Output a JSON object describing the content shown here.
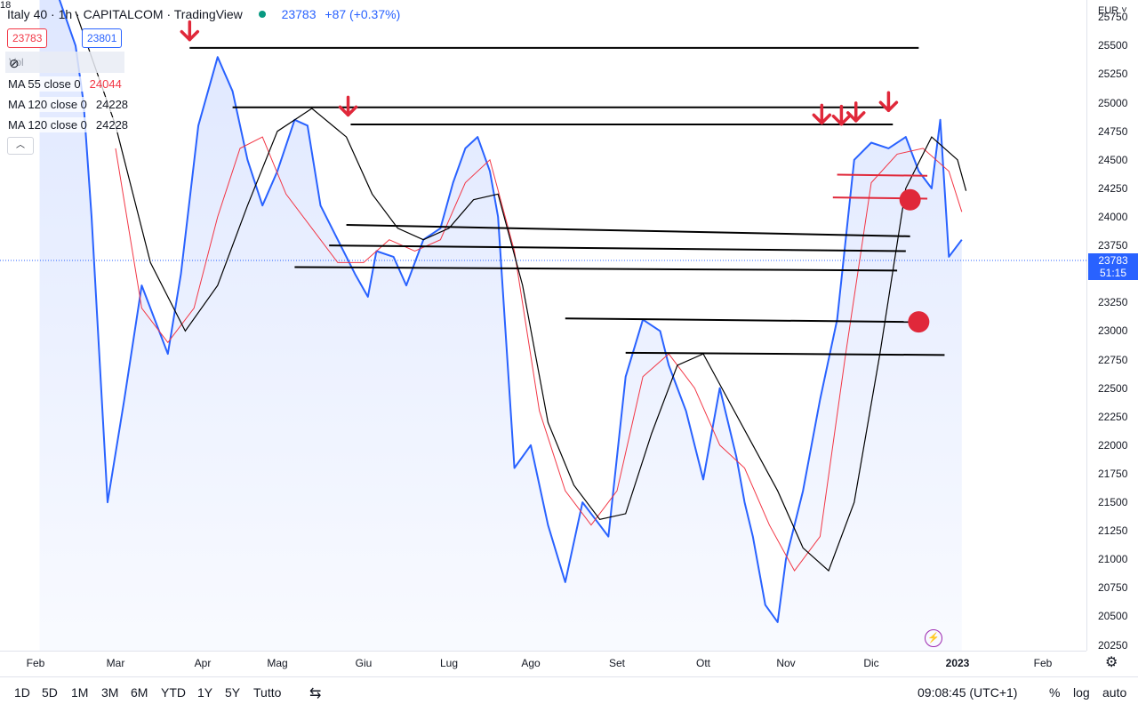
{
  "header": {
    "title": "Italy 40 · 1h · CAPITALCOM · TradingView",
    "last_value": "23783",
    "change": "+87 (+0.37%)"
  },
  "quote": {
    "bid": "23783",
    "spread": "18",
    "ask": "23801"
  },
  "volume": {
    "label": "Vol",
    "icon": "eye-slash-icon"
  },
  "indicators": [
    {
      "label": "MA 55 close 0",
      "value": "24044",
      "color": "#f23645"
    },
    {
      "label": "MA 120 close 0",
      "value": "24228",
      "color": "#131722"
    },
    {
      "label": "MA 120 close 0",
      "value": "24228",
      "color": "#131722"
    }
  ],
  "price_axis": {
    "currency": "EUR",
    "current_price": "23783",
    "countdown": "51:15",
    "ticks": [
      "20250",
      "20500",
      "20750",
      "21000",
      "21250",
      "21500",
      "21750",
      "22000",
      "22250",
      "22500",
      "22750",
      "23000",
      "23250",
      "23500",
      "23750",
      "24000",
      "24250",
      "24500",
      "24750",
      "25000",
      "25250",
      "25500",
      "25750"
    ]
  },
  "time_axis": {
    "ticks": [
      {
        "label": "Feb",
        "bold": false
      },
      {
        "label": "Mar",
        "bold": false
      },
      {
        "label": "Apr",
        "bold": false
      },
      {
        "label": "Mag",
        "bold": false
      },
      {
        "label": "Giu",
        "bold": false
      },
      {
        "label": "Lug",
        "bold": false
      },
      {
        "label": "Ago",
        "bold": false
      },
      {
        "label": "Set",
        "bold": false
      },
      {
        "label": "Ott",
        "bold": false
      },
      {
        "label": "Nov",
        "bold": false
      },
      {
        "label": "Dic",
        "bold": false
      },
      {
        "label": "2023",
        "bold": true
      },
      {
        "label": "Feb",
        "bold": false
      }
    ]
  },
  "bottom_bar": {
    "ranges": [
      "1D",
      "5D",
      "1M",
      "3M",
      "6M",
      "YTD",
      "1Y",
      "5Y",
      "Tutto"
    ],
    "time": "09:08:45 (UTC+1)",
    "percent": "%",
    "log": "log",
    "auto": "auto"
  },
  "colors": {
    "price": "#2962ff",
    "ma55": "#f23645",
    "ma120": "#000000",
    "annotation": "#e0283a"
  },
  "chart_data": {
    "type": "line",
    "x_unit": "month (2022, 1 = 1 Jan)",
    "y_range": [
      20200,
      25900
    ],
    "series": [
      {
        "name": "Italy 40",
        "x": [
          1.05,
          1.3,
          1.5,
          1.6,
          1.7,
          1.9,
          2.1,
          2.3,
          2.6,
          2.75,
          2.95,
          3.2,
          3.4,
          3.6,
          3.8,
          4.0,
          4.2,
          4.35,
          4.5,
          4.7,
          4.9,
          5.05,
          5.15,
          5.35,
          5.5,
          5.7,
          5.9,
          6.05,
          6.2,
          6.35,
          6.5,
          6.6,
          6.8,
          7.0,
          7.2,
          7.4,
          7.6,
          7.8,
          7.9,
          8.1,
          8.3,
          8.5,
          8.6,
          8.8,
          9.0,
          9.2,
          9.4,
          9.5,
          9.6,
          9.75,
          9.9,
          10.0,
          10.2,
          10.4,
          10.6,
          10.8,
          11.0,
          11.2,
          11.4,
          11.55,
          11.7,
          11.8,
          11.9,
          12.05,
          12.2,
          12.35,
          12.5
        ],
        "values": [
          26200,
          25900,
          25500,
          25000,
          24000,
          21500,
          22400,
          23400,
          22800,
          23500,
          24800,
          25400,
          25100,
          24500,
          24100,
          24400,
          24850,
          24800,
          24100,
          23800,
          23500,
          23300,
          23700,
          23650,
          23400,
          23800,
          23900,
          24300,
          24600,
          24700,
          24400,
          24000,
          21800,
          22000,
          21300,
          20800,
          21500,
          21300,
          21200,
          22600,
          23100,
          23000,
          22700,
          22300,
          21700,
          22500,
          21900,
          21500,
          21200,
          20600,
          20450,
          21000,
          21600,
          22400,
          23100,
          24500,
          24650,
          24600,
          24700,
          24400,
          24250,
          24850,
          23650,
          23800,
          null,
          null,
          null
        ]
      },
      {
        "name": "MA 55 close 0",
        "x": [
          2.0,
          2.3,
          2.6,
          2.9,
          3.2,
          3.5,
          3.8,
          4.1,
          4.4,
          4.7,
          5.0,
          5.3,
          5.6,
          5.9,
          6.2,
          6.5,
          6.8,
          7.1,
          7.4,
          7.7,
          8.0,
          8.3,
          8.6,
          8.9,
          9.2,
          9.5,
          9.8,
          10.1,
          10.4,
          10.7,
          11.0,
          11.3,
          11.6,
          11.9,
          12.05
        ],
        "values": [
          24600,
          23200,
          22900,
          23200,
          24000,
          24600,
          24700,
          24200,
          23900,
          23600,
          23600,
          23800,
          23700,
          23800,
          24300,
          24500,
          23700,
          22300,
          21600,
          21300,
          21600,
          22600,
          22800,
          22500,
          22000,
          21800,
          21300,
          20900,
          21200,
          22800,
          24300,
          24550,
          24600,
          24400,
          24044
        ]
      },
      {
        "name": "MA 120 close 0",
        "x": [
          1.5,
          2.0,
          2.4,
          2.8,
          3.2,
          3.6,
          4.0,
          4.4,
          4.8,
          5.1,
          5.4,
          5.7,
          6.0,
          6.3,
          6.6,
          6.9,
          7.2,
          7.5,
          7.8,
          8.1,
          8.4,
          8.7,
          9.0,
          9.3,
          9.6,
          9.9,
          10.2,
          10.5,
          10.8,
          11.1,
          11.4,
          11.7,
          12.0,
          12.1
        ],
        "values": [
          25800,
          24800,
          23600,
          23000,
          23400,
          24100,
          24750,
          24950,
          24700,
          24200,
          23900,
          23800,
          23900,
          24150,
          24200,
          23400,
          22200,
          21650,
          21350,
          21400,
          22100,
          22700,
          22800,
          22400,
          22000,
          21600,
          21100,
          20900,
          21500,
          22800,
          24250,
          24700,
          24500,
          24228
        ]
      }
    ],
    "drawn_lines": [
      {
        "x": [
          2.85,
          11.55
        ],
        "y": [
          25480,
          25480
        ]
      },
      {
        "x": [
          3.4,
          11.25
        ],
        "y": [
          24960,
          24960
        ]
      },
      {
        "x": [
          4.85,
          11.25
        ],
        "y": [
          24810,
          24810
        ]
      },
      {
        "x": [
          4.8,
          11.45
        ],
        "y": [
          23930,
          23830
        ]
      },
      {
        "x": [
          4.6,
          11.4
        ],
        "y": [
          23750,
          23700
        ]
      },
      {
        "x": [
          4.2,
          11.3
        ],
        "y": [
          23560,
          23530
        ]
      },
      {
        "x": [
          7.4,
          11.45
        ],
        "y": [
          23110,
          23080
        ]
      },
      {
        "x": [
          8.1,
          11.85
        ],
        "y": [
          22810,
          22790
        ]
      }
    ],
    "annotation_lines": [
      {
        "x": [
          10.6,
          11.65
        ],
        "y": [
          24370,
          24360
        ]
      },
      {
        "x": [
          10.55,
          11.65
        ],
        "y": [
          24170,
          24160
        ]
      }
    ],
    "arrows": [
      {
        "x": 2.85,
        "y": 25490
      },
      {
        "x": 4.82,
        "y": 24830
      },
      {
        "x": 10.42,
        "y": 24760
      },
      {
        "x": 10.65,
        "y": 24750
      },
      {
        "x": 10.82,
        "y": 24780
      },
      {
        "x": 11.2,
        "y": 24870
      }
    ],
    "dots": [
      {
        "x": 11.45,
        "y": 24150
      },
      {
        "x": 11.55,
        "y": 23080
      }
    ]
  }
}
